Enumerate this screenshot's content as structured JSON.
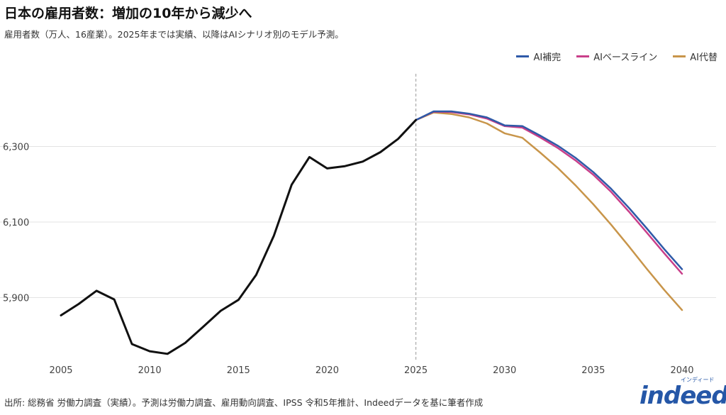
{
  "title": "日本の雇用者数：増加の10年から減少へ",
  "subtitle": "雇用者数（万人、16産業）。2025年までは実績、以降はAIシナリオ別のモデル予測。",
  "source": "出所: 総務省 労働力調査（実績）。予測は労働力調査、雇用動向調査、IPSS 令和5年推計、Indeedデータを基に筆者作成",
  "logo": {
    "word": "indeed",
    "kana": "インディード"
  },
  "colors": {
    "actual": "#111111",
    "ai_complement": "#2f5aa8",
    "ai_baseline": "#c93f8a",
    "ai_replacement": "#c8954a",
    "grid": "#e3e3e3",
    "divider": "#aaaaaa"
  },
  "chart_data": {
    "type": "line",
    "title": "日本の雇用者数：増加の10年から減少へ",
    "xlabel": "",
    "ylabel": "",
    "xlim": [
      2005,
      2040
    ],
    "ylim": [
      5730,
      6500
    ],
    "x_ticks": [
      2005,
      2010,
      2015,
      2020,
      2025,
      2030,
      2035,
      2040
    ],
    "y_ticks": [
      5900,
      6100,
      6300
    ],
    "y_tick_labels": [
      "5,900",
      "6,100",
      "6,300"
    ],
    "x_tick_labels": [
      "2005",
      "2010",
      "2015",
      "2020",
      "2025",
      "2030",
      "2035",
      "2040"
    ],
    "divider_x": 2025,
    "grid": "horizontal",
    "legend_position": "top-right",
    "series": [
      {
        "name": "",
        "key": "actual",
        "x": [
          2005,
          2006,
          2007,
          2008,
          2009,
          2010,
          2011,
          2012,
          2013,
          2014,
          2015,
          2016,
          2017,
          2018,
          2019,
          2020,
          2021,
          2022,
          2023,
          2024,
          2025
        ],
        "values": [
          5853,
          5883,
          5918,
          5895,
          5777,
          5758,
          5751,
          5780,
          5822,
          5865,
          5894,
          5960,
          6064,
          6199,
          6272,
          6242,
          6248,
          6260,
          6285,
          6320,
          6370
        ]
      },
      {
        "name": "AI補完",
        "key": "ai_complement",
        "x": [
          2025,
          2026,
          2027,
          2028,
          2029,
          2030,
          2031,
          2032,
          2033,
          2034,
          2035,
          2036,
          2037,
          2038,
          2039,
          2040
        ],
        "values": [
          6370,
          6393,
          6393,
          6387,
          6377,
          6356,
          6354,
          6329,
          6302,
          6270,
          6232,
          6188,
          6138,
          6084,
          6028,
          5975
        ]
      },
      {
        "name": "AIベースライン",
        "key": "ai_baseline",
        "x": [
          2025,
          2026,
          2027,
          2028,
          2029,
          2030,
          2031,
          2032,
          2033,
          2034,
          2035,
          2036,
          2037,
          2038,
          2039,
          2040
        ],
        "values": [
          6370,
          6392,
          6391,
          6385,
          6374,
          6354,
          6350,
          6324,
          6296,
          6263,
          6225,
          6180,
          6128,
          6073,
          6017,
          5963
        ]
      },
      {
        "name": "AI代替",
        "key": "ai_replacement",
        "x": [
          2025,
          2026,
          2027,
          2028,
          2029,
          2030,
          2031,
          2032,
          2033,
          2034,
          2035,
          2036,
          2037,
          2038,
          2039,
          2040
        ],
        "values": [
          6370,
          6390,
          6386,
          6377,
          6361,
          6335,
          6323,
          6284,
          6243,
          6197,
          6147,
          6093,
          6036,
          5977,
          5920,
          5867
        ]
      }
    ]
  }
}
